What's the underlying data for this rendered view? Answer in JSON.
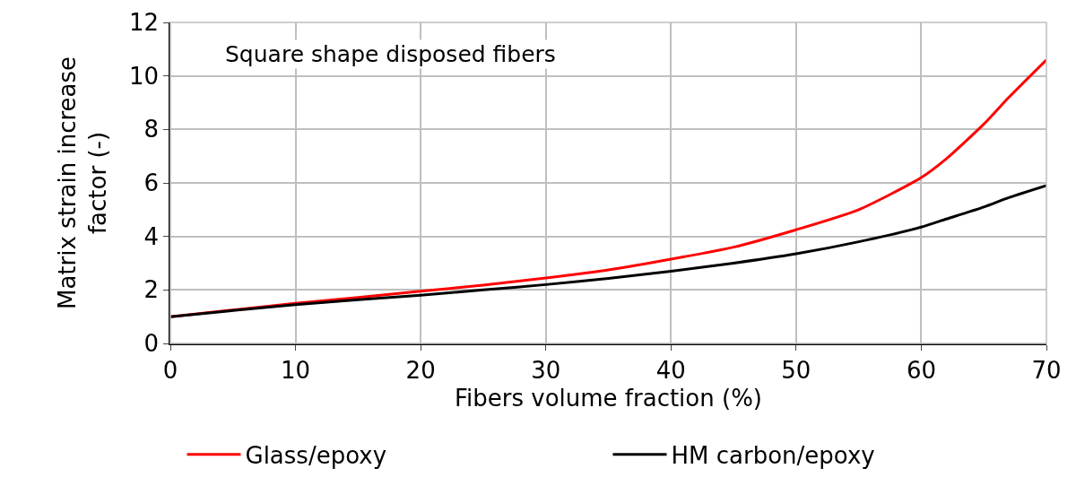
{
  "chart_data": {
    "type": "line",
    "xlabel": "Fibers volume fraction (%)",
    "ylabel": "Matrix strain increase factor (-)",
    "annotations": [
      "Square shape disposed fibers"
    ],
    "x": [
      0,
      5,
      10,
      15,
      20,
      25,
      30,
      35,
      40,
      45,
      50,
      55,
      60,
      62,
      65,
      67,
      70
    ],
    "series": [
      {
        "name": "Glass/epoxy",
        "color": "#ff0000",
        "values": [
          1.0,
          1.25,
          1.5,
          1.72,
          1.95,
          2.18,
          2.45,
          2.75,
          3.15,
          3.6,
          4.25,
          5.0,
          6.2,
          6.9,
          8.2,
          9.2,
          10.6
        ]
      },
      {
        "name": "HM carbon/epoxy",
        "color": "#000000",
        "values": [
          1.0,
          1.23,
          1.45,
          1.63,
          1.8,
          2.0,
          2.2,
          2.43,
          2.7,
          3.0,
          3.35,
          3.8,
          4.35,
          4.65,
          5.1,
          5.45,
          5.9
        ]
      }
    ],
    "xlim": [
      0,
      70
    ],
    "xticks": [
      0,
      10,
      20,
      30,
      40,
      50,
      60,
      70
    ],
    "ylim": [
      0,
      12
    ],
    "yticks": [
      0,
      2,
      4,
      6,
      8,
      10,
      12
    ],
    "grid": true,
    "legend": "bottom",
    "marker": "none",
    "line_style": "solid"
  }
}
